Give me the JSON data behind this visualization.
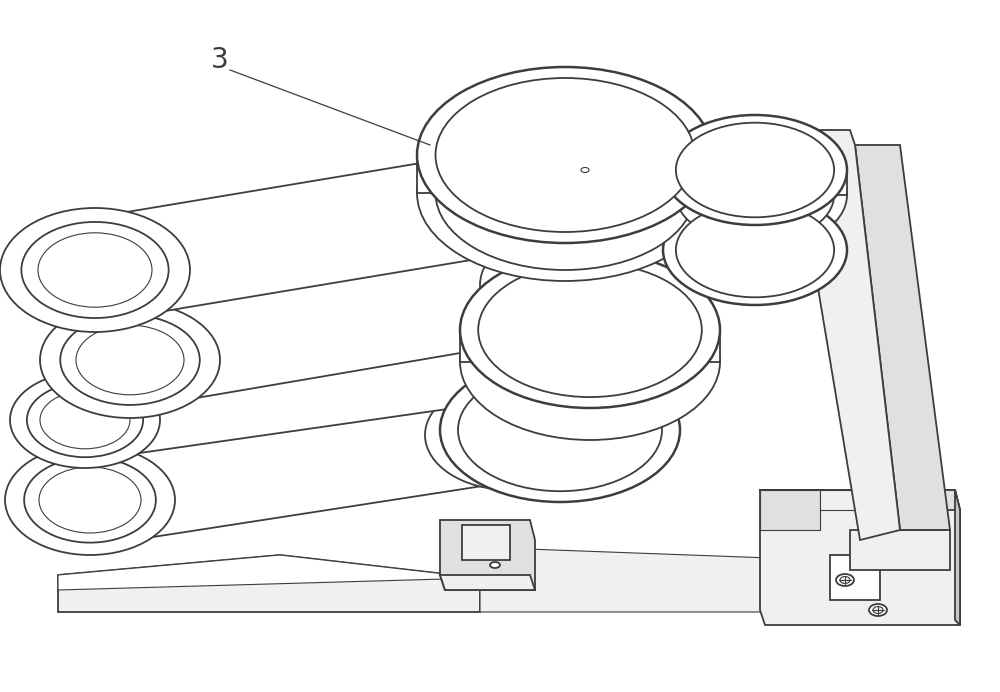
{
  "background_color": "#ffffff",
  "line_color": "#3d3d3d",
  "fill_white": "#ffffff",
  "fill_light": "#f0f0f0",
  "fill_mid": "#e0e0e0",
  "fill_dark": "#c8c8c8",
  "fill_darker": "#b0b0b0",
  "label_text": "3",
  "label_fontsize": 20,
  "lw_main": 1.3,
  "lw_thin": 0.8,
  "lw_thick": 1.8,
  "figwidth": 10.0,
  "figheight": 6.92,
  "dpi": 100
}
